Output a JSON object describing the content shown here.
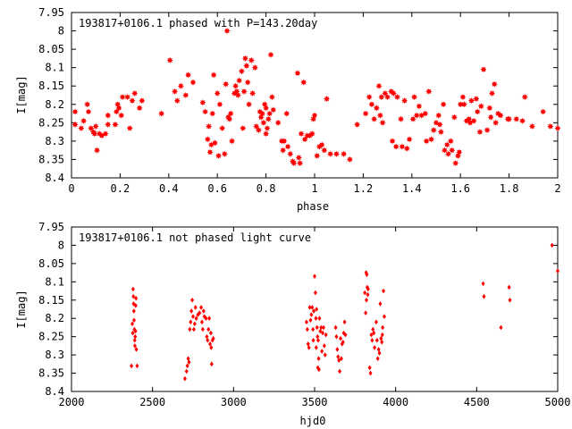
{
  "colors": {
    "points": "#ff0000",
    "axes": "#000000",
    "background": "#ffffff"
  },
  "chart_data": [
    {
      "type": "scatter",
      "title": "193817+0106.1 phased with P=143.20day",
      "xlabel": "phase",
      "ylabel": "I[mag]",
      "xlim": [
        0,
        2
      ],
      "ylim": [
        7.95,
        8.4
      ],
      "y_inverted": true,
      "grid": false,
      "legend": "none",
      "marker": "star",
      "x_ticks": [
        "0",
        "0.2",
        "0.4",
        "0.6",
        "0.8",
        "1",
        "1.2",
        "1.4",
        "1.6",
        "1.8",
        "2"
      ],
      "y_ticks": [
        "7.95",
        "8",
        "8.05",
        "8.1",
        "8.15",
        "8.2",
        "8.25",
        "8.3",
        "8.35",
        "8.4"
      ],
      "points": [
        [
          0.015,
          8.22
        ],
        [
          0.015,
          8.255
        ],
        [
          0.04,
          8.265
        ],
        [
          0.05,
          8.245
        ],
        [
          0.065,
          8.2
        ],
        [
          0.07,
          8.22
        ],
        [
          0.08,
          8.265
        ],
        [
          0.09,
          8.275
        ],
        [
          0.095,
          8.28
        ],
        [
          0.1,
          8.26
        ],
        [
          0.105,
          8.325
        ],
        [
          0.115,
          8.28
        ],
        [
          0.125,
          8.285
        ],
        [
          0.14,
          8.28
        ],
        [
          0.15,
          8.23
        ],
        [
          0.15,
          8.255
        ],
        [
          0.18,
          8.255
        ],
        [
          0.185,
          8.22
        ],
        [
          0.19,
          8.2
        ],
        [
          0.195,
          8.21
        ],
        [
          0.205,
          8.23
        ],
        [
          0.21,
          8.18
        ],
        [
          0.23,
          8.18
        ],
        [
          0.24,
          8.265
        ],
        [
          0.25,
          8.19
        ],
        [
          0.26,
          8.17
        ],
        [
          0.28,
          8.21
        ],
        [
          0.29,
          8.19
        ],
        [
          0.37,
          8.225
        ],
        [
          0.405,
          8.08
        ],
        [
          0.425,
          8.165
        ],
        [
          0.435,
          8.19
        ],
        [
          0.45,
          8.15
        ],
        [
          0.47,
          8.175
        ],
        [
          0.48,
          8.12
        ],
        [
          0.5,
          8.14
        ],
        [
          0.54,
          8.195
        ],
        [
          0.55,
          8.22
        ],
        [
          0.56,
          8.295
        ],
        [
          0.565,
          8.26
        ],
        [
          0.57,
          8.33
        ],
        [
          0.575,
          8.31
        ],
        [
          0.58,
          8.225
        ],
        [
          0.585,
          8.12
        ],
        [
          0.59,
          8.305
        ],
        [
          0.6,
          8.17
        ],
        [
          0.605,
          8.34
        ],
        [
          0.61,
          8.2
        ],
        [
          0.62,
          8.265
        ],
        [
          0.63,
          8.335
        ],
        [
          0.635,
          8.145
        ],
        [
          0.64,
          8.0
        ],
        [
          0.645,
          8.235
        ],
        [
          0.65,
          8.24
        ],
        [
          0.655,
          8.225
        ],
        [
          0.66,
          8.3
        ],
        [
          0.67,
          8.17
        ],
        [
          0.675,
          8.15
        ],
        [
          0.68,
          8.165
        ],
        [
          0.685,
          8.175
        ],
        [
          0.69,
          8.135
        ],
        [
          0.7,
          8.11
        ],
        [
          0.705,
          8.265
        ],
        [
          0.71,
          8.165
        ],
        [
          0.715,
          8.075
        ],
        [
          0.72,
          8.095
        ],
        [
          0.725,
          8.14
        ],
        [
          0.73,
          8.2
        ],
        [
          0.74,
          8.08
        ],
        [
          0.745,
          8.17
        ],
        [
          0.755,
          8.1
        ],
        [
          0.76,
          8.26
        ],
        [
          0.77,
          8.27
        ],
        [
          0.775,
          8.22
        ],
        [
          0.78,
          8.235
        ],
        [
          0.785,
          8.225
        ],
        [
          0.79,
          8.25
        ],
        [
          0.795,
          8.2
        ],
        [
          0.8,
          8.21
        ],
        [
          0.8,
          8.28
        ],
        [
          0.805,
          8.265
        ],
        [
          0.81,
          8.24
        ],
        [
          0.815,
          8.225
        ],
        [
          0.82,
          8.065
        ],
        [
          0.825,
          8.18
        ],
        [
          0.83,
          8.215
        ],
        [
          0.85,
          8.25
        ],
        [
          0.865,
          8.3
        ],
        [
          0.87,
          8.325
        ],
        [
          0.875,
          8.3
        ],
        [
          0.885,
          8.225
        ],
        [
          0.89,
          8.315
        ],
        [
          0.9,
          8.335
        ],
        [
          0.91,
          8.355
        ],
        [
          0.915,
          8.36
        ],
        [
          0.93,
          8.115
        ],
        [
          0.935,
          8.345
        ],
        [
          0.94,
          8.36
        ],
        [
          0.945,
          8.28
        ],
        [
          0.955,
          8.14
        ],
        [
          0.96,
          8.295
        ],
        [
          0.97,
          8.285
        ],
        [
          0.98,
          8.285
        ],
        [
          0.99,
          8.28
        ],
        [
          0.995,
          8.24
        ],
        [
          1.0,
          8.23
        ],
        [
          1.01,
          8.34
        ],
        [
          1.02,
          8.315
        ],
        [
          1.03,
          8.31
        ],
        [
          1.04,
          8.325
        ],
        [
          1.05,
          8.185
        ],
        [
          1.065,
          8.335
        ],
        [
          1.09,
          8.335
        ],
        [
          1.12,
          8.335
        ],
        [
          1.145,
          8.35
        ],
        [
          1.175,
          8.255
        ],
        [
          1.21,
          8.225
        ],
        [
          1.225,
          8.18
        ],
        [
          1.235,
          8.2
        ],
        [
          1.245,
          8.24
        ],
        [
          1.255,
          8.21
        ],
        [
          1.265,
          8.15
        ],
        [
          1.27,
          8.23
        ],
        [
          1.275,
          8.18
        ],
        [
          1.28,
          8.25
        ],
        [
          1.29,
          8.17
        ],
        [
          1.3,
          8.18
        ],
        [
          1.315,
          8.165
        ],
        [
          1.32,
          8.3
        ],
        [
          1.325,
          8.17
        ],
        [
          1.335,
          8.315
        ],
        [
          1.34,
          8.18
        ],
        [
          1.355,
          8.24
        ],
        [
          1.36,
          8.315
        ],
        [
          1.37,
          8.19
        ],
        [
          1.38,
          8.32
        ],
        [
          1.39,
          8.295
        ],
        [
          1.405,
          8.24
        ],
        [
          1.41,
          8.18
        ],
        [
          1.42,
          8.23
        ],
        [
          1.43,
          8.205
        ],
        [
          1.44,
          8.23
        ],
        [
          1.455,
          8.225
        ],
        [
          1.46,
          8.3
        ],
        [
          1.47,
          8.165
        ],
        [
          1.48,
          8.295
        ],
        [
          1.49,
          8.27
        ],
        [
          1.5,
          8.25
        ],
        [
          1.51,
          8.23
        ],
        [
          1.515,
          8.255
        ],
        [
          1.52,
          8.275
        ],
        [
          1.53,
          8.2
        ],
        [
          1.535,
          8.325
        ],
        [
          1.545,
          8.31
        ],
        [
          1.55,
          8.335
        ],
        [
          1.56,
          8.3
        ],
        [
          1.565,
          8.325
        ],
        [
          1.575,
          8.235
        ],
        [
          1.58,
          8.36
        ],
        [
          1.59,
          8.34
        ],
        [
          1.595,
          8.33
        ],
        [
          1.6,
          8.2
        ],
        [
          1.61,
          8.18
        ],
        [
          1.615,
          8.2
        ],
        [
          1.625,
          8.245
        ],
        [
          1.635,
          8.24
        ],
        [
          1.64,
          8.25
        ],
        [
          1.645,
          8.19
        ],
        [
          1.655,
          8.245
        ],
        [
          1.665,
          8.185
        ],
        [
          1.67,
          8.22
        ],
        [
          1.68,
          8.275
        ],
        [
          1.685,
          8.205
        ],
        [
          1.695,
          8.105
        ],
        [
          1.71,
          8.27
        ],
        [
          1.72,
          8.21
        ],
        [
          1.725,
          8.235
        ],
        [
          1.73,
          8.17
        ],
        [
          1.74,
          8.145
        ],
        [
          1.745,
          8.25
        ],
        [
          1.755,
          8.225
        ],
        [
          1.765,
          8.23
        ],
        [
          1.795,
          8.24
        ],
        [
          1.8,
          8.24
        ],
        [
          1.83,
          8.24
        ],
        [
          1.855,
          8.245
        ],
        [
          1.865,
          8.18
        ],
        [
          1.895,
          8.26
        ],
        [
          1.94,
          8.22
        ],
        [
          1.97,
          8.26
        ],
        [
          2.0,
          8.265
        ]
      ]
    },
    {
      "type": "scatter",
      "title": "193817+0106.1 not phased light curve",
      "xlabel": "hjd0",
      "ylabel": "I[mag]",
      "xlim": [
        2000,
        5000
      ],
      "ylim": [
        7.95,
        8.4
      ],
      "y_inverted": true,
      "grid": false,
      "legend": "none",
      "marker": "diamond",
      "x_ticks": [
        "2000",
        "2500",
        "3000",
        "3500",
        "4000",
        "4500",
        "5000"
      ],
      "y_ticks": [
        "7.95",
        "8",
        "8.05",
        "8.1",
        "8.15",
        "8.2",
        "8.25",
        "8.3",
        "8.35",
        "8.4"
      ],
      "points": [
        [
          2370,
          8.33
        ],
        [
          2375,
          8.215
        ],
        [
          2378,
          8.24
        ],
        [
          2380,
          8.12
        ],
        [
          2382,
          8.14
        ],
        [
          2383,
          8.16
        ],
        [
          2385,
          8.18
        ],
        [
          2386,
          8.205
        ],
        [
          2388,
          8.23
        ],
        [
          2390,
          8.26
        ],
        [
          2391,
          8.275
        ],
        [
          2393,
          8.25
        ],
        [
          2395,
          8.235
        ],
        [
          2396,
          8.165
        ],
        [
          2398,
          8.145
        ],
        [
          2400,
          8.285
        ],
        [
          2405,
          8.33
        ],
        [
          2700,
          8.365
        ],
        [
          2710,
          8.345
        ],
        [
          2715,
          8.33
        ],
        [
          2720,
          8.31
        ],
        [
          2725,
          8.32
        ],
        [
          2730,
          8.23
        ],
        [
          2735,
          8.21
        ],
        [
          2740,
          8.18
        ],
        [
          2745,
          8.15
        ],
        [
          2750,
          8.195
        ],
        [
          2755,
          8.23
        ],
        [
          2760,
          8.215
        ],
        [
          2765,
          8.17
        ],
        [
          2770,
          8.2
        ],
        [
          2780,
          8.19
        ],
        [
          2790,
          8.185
        ],
        [
          2800,
          8.17
        ],
        [
          2805,
          8.21
        ],
        [
          2810,
          8.23
        ],
        [
          2815,
          8.18
        ],
        [
          2820,
          8.195
        ],
        [
          2830,
          8.2
        ],
        [
          2835,
          8.25
        ],
        [
          2840,
          8.26
        ],
        [
          2845,
          8.23
        ],
        [
          2850,
          8.2
        ],
        [
          2855,
          8.27
        ],
        [
          2860,
          8.24
        ],
        [
          2862,
          8.28
        ],
        [
          2865,
          8.325
        ],
        [
          2870,
          8.26
        ],
        [
          2875,
          8.255
        ],
        [
          3450,
          8.21
        ],
        [
          3455,
          8.23
        ],
        [
          3460,
          8.27
        ],
        [
          3465,
          8.28
        ],
        [
          3470,
          8.17
        ],
        [
          3475,
          8.205
        ],
        [
          3480,
          8.19
        ],
        [
          3485,
          8.17
        ],
        [
          3490,
          8.23
        ],
        [
          3492,
          8.26
        ],
        [
          3495,
          8.18
        ],
        [
          3500,
          8.085
        ],
        [
          3505,
          8.13
        ],
        [
          3508,
          8.2
        ],
        [
          3510,
          8.28
        ],
        [
          3512,
          8.175
        ],
        [
          3515,
          8.225
        ],
        [
          3518,
          8.25
        ],
        [
          3520,
          8.335
        ],
        [
          3522,
          8.26
        ],
        [
          3525,
          8.31
        ],
        [
          3527,
          8.34
        ],
        [
          3530,
          8.2
        ],
        [
          3535,
          8.235
        ],
        [
          3540,
          8.225
        ],
        [
          3545,
          8.29
        ],
        [
          3550,
          8.24
        ],
        [
          3555,
          8.225
        ],
        [
          3560,
          8.275
        ],
        [
          3565,
          8.3
        ],
        [
          3570,
          8.245
        ],
        [
          3630,
          8.225
        ],
        [
          3635,
          8.25
        ],
        [
          3640,
          8.285
        ],
        [
          3645,
          8.305
        ],
        [
          3650,
          8.315
        ],
        [
          3655,
          8.345
        ],
        [
          3660,
          8.255
        ],
        [
          3665,
          8.31
        ],
        [
          3670,
          8.27
        ],
        [
          3675,
          8.265
        ],
        [
          3680,
          8.24
        ],
        [
          3685,
          8.21
        ],
        [
          3690,
          8.245
        ],
        [
          3810,
          8.13
        ],
        [
          3815,
          8.185
        ],
        [
          3818,
          8.075
        ],
        [
          3820,
          8.15
        ],
        [
          3822,
          8.08
        ],
        [
          3825,
          8.115
        ],
        [
          3828,
          8.135
        ],
        [
          3830,
          8.12
        ],
        [
          3840,
          8.335
        ],
        [
          3845,
          8.35
        ],
        [
          3850,
          8.245
        ],
        [
          3855,
          8.26
        ],
        [
          3860,
          8.23
        ],
        [
          3865,
          8.24
        ],
        [
          3870,
          8.28
        ],
        [
          3880,
          8.21
        ],
        [
          3885,
          8.26
        ],
        [
          3890,
          8.31
        ],
        [
          3895,
          8.285
        ],
        [
          3900,
          8.295
        ],
        [
          3905,
          8.16
        ],
        [
          3910,
          8.255
        ],
        [
          3915,
          8.265
        ],
        [
          3918,
          8.245
        ],
        [
          3920,
          8.225
        ],
        [
          3925,
          8.125
        ],
        [
          3930,
          8.195
        ],
        [
          4540,
          8.105
        ],
        [
          4545,
          8.14
        ],
        [
          4650,
          8.225
        ],
        [
          4700,
          8.115
        ],
        [
          4705,
          8.15
        ],
        [
          4965,
          8.0
        ],
        [
          5000,
          8.07
        ]
      ]
    }
  ]
}
